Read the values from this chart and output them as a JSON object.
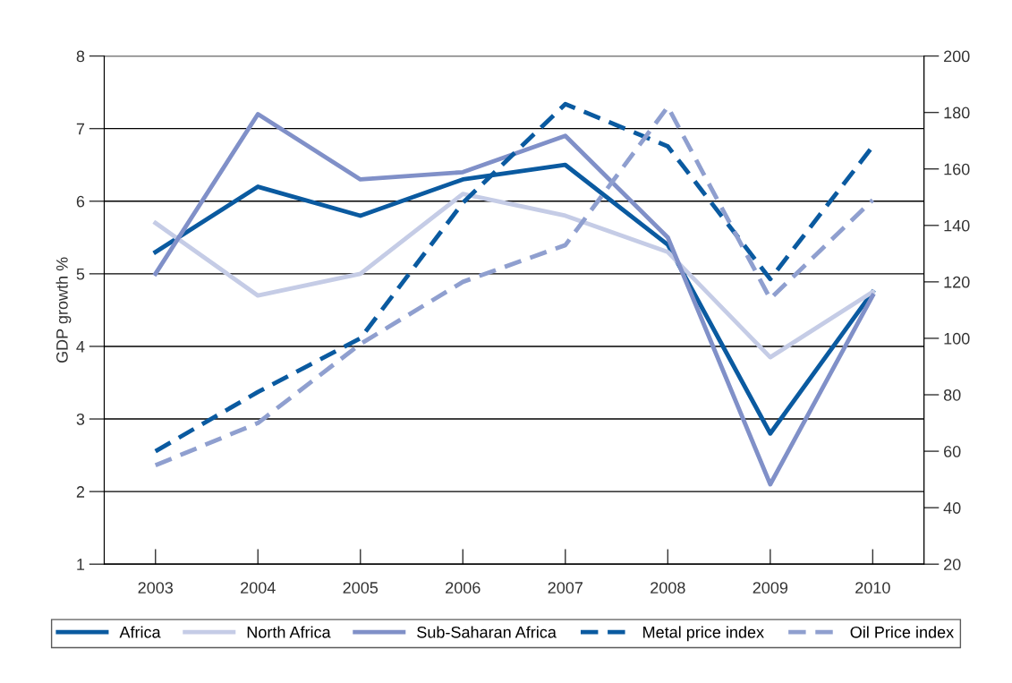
{
  "chart_data": {
    "type": "line",
    "ylabel": "GDP growth %",
    "categories": [
      "2003",
      "2004",
      "2005",
      "2006",
      "2007",
      "2008",
      "2009",
      "2010"
    ],
    "ylim": [
      1,
      8
    ],
    "yticks": [
      1,
      2,
      3,
      4,
      5,
      6,
      7,
      8
    ],
    "y2lim": [
      20,
      200
    ],
    "y2ticks": [
      20,
      40,
      60,
      80,
      100,
      120,
      140,
      160,
      180,
      200
    ],
    "grid": "y",
    "legend": "bottom",
    "marker": "none",
    "series": [
      {
        "name": "Africa",
        "color": "#0a5aa0",
        "line_style": "solid",
        "values": [
          5.3,
          6.2,
          5.8,
          6.3,
          6.5,
          5.4,
          2.8,
          4.75
        ]
      },
      {
        "name": "North Africa",
        "color": "#c5cce6",
        "line_style": "solid",
        "values": [
          5.7,
          4.7,
          5.0,
          6.1,
          5.8,
          5.3,
          3.85,
          4.75
        ]
      },
      {
        "name": "Sub-Saharan Africa",
        "color": "#8090c8",
        "line_style": "solid",
        "values": [
          5.0,
          7.2,
          6.3,
          6.4,
          6.9,
          5.5,
          2.1,
          4.7
        ]
      },
      {
        "name": "Metal price index",
        "color": "#0a5aa0",
        "line_style": "dashed",
        "axis": "y2",
        "values": [
          60,
          81,
          100,
          148,
          183,
          168,
          121,
          168
        ]
      },
      {
        "name": "Oil Price index",
        "color": "#8f9fcf",
        "line_style": "dashed",
        "axis": "y2",
        "values": [
          55,
          70,
          98,
          120,
          133,
          182,
          114,
          149
        ]
      }
    ]
  }
}
